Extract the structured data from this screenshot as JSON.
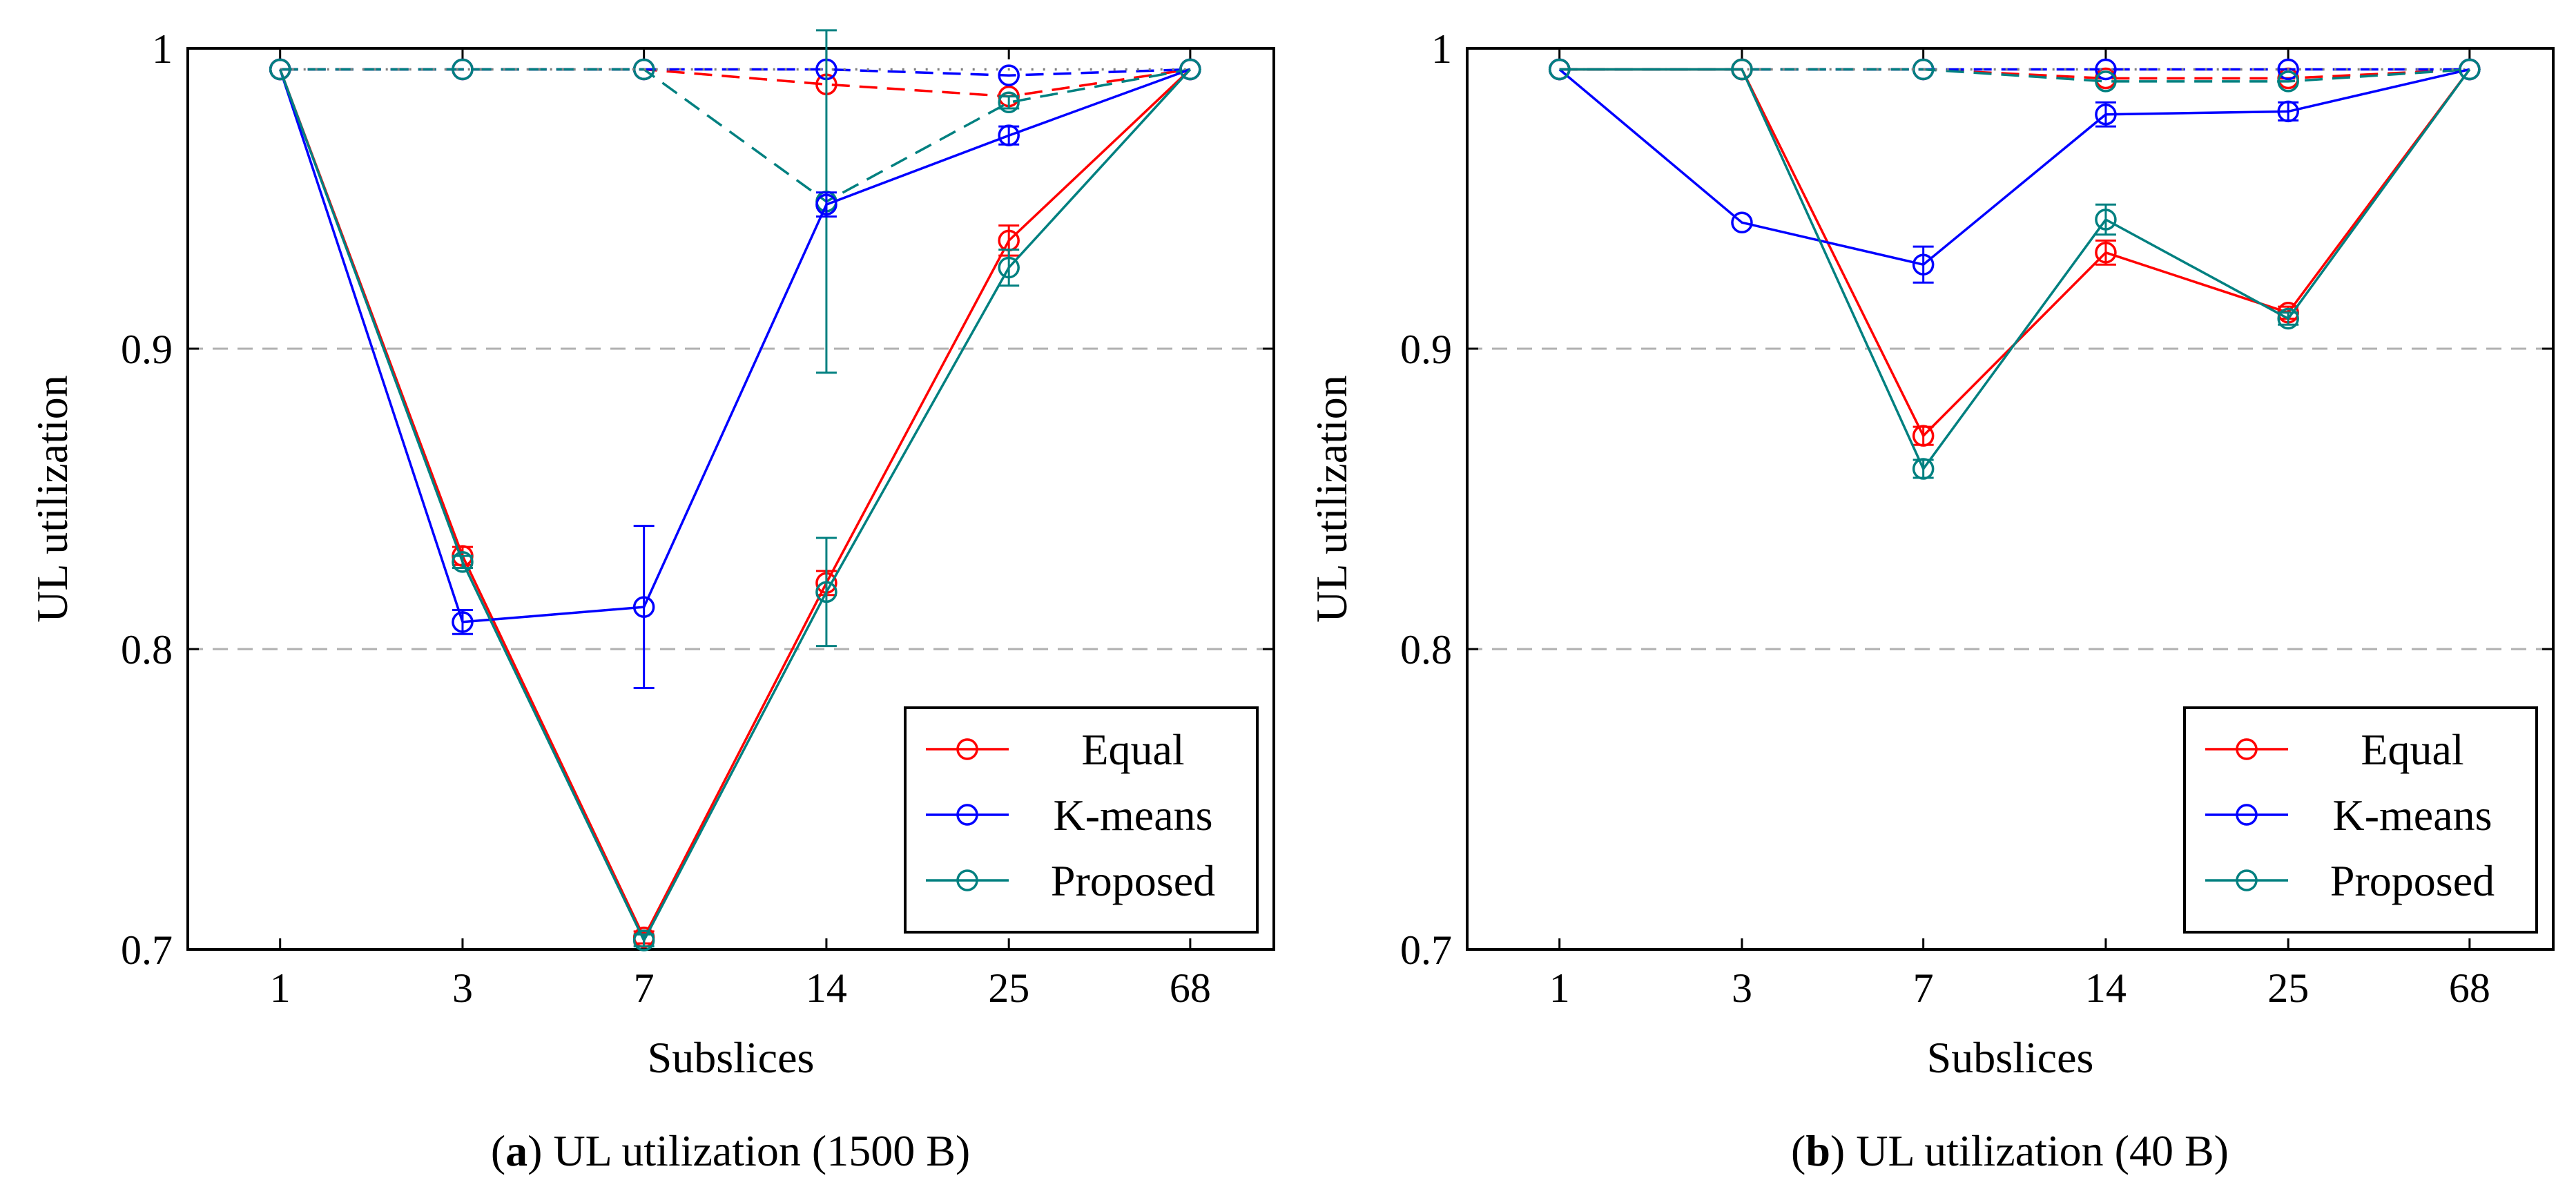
{
  "colors": {
    "Equal": "#ff0000",
    "K-means": "#0000ff",
    "Proposed": "#008080",
    "grid": "#b0b0b0",
    "reference": "#808080"
  },
  "chart_data": [
    {
      "type": "line",
      "caption_letter": "a",
      "caption_rest": ") UL utilization (1500 B)",
      "caption_open": "(",
      "xlabel": "Subslices",
      "ylabel": "UL utilization",
      "categories": [
        "1",
        "3",
        "7",
        "14",
        "25",
        "68"
      ],
      "y_ticks": [
        "0.7",
        "0.8",
        "0.9",
        "1"
      ],
      "ylim": [
        0.7,
        1.0
      ],
      "grid": "horizontal dashed at 0.8 and 0.9",
      "legend_position": "bottom-right",
      "legend": [
        "Equal",
        "K-means",
        "Proposed"
      ],
      "series": [
        {
          "name": "Equal",
          "values": [
            0.993,
            0.831,
            0.704,
            0.822,
            0.936,
            0.993
          ],
          "errors": [
            0,
            0.003,
            0.002,
            0.004,
            0.005,
            0
          ]
        },
        {
          "name": "K-means",
          "values": [
            0.993,
            0.809,
            0.814,
            0.948,
            0.971,
            0.993
          ],
          "errors": [
            0,
            0.004,
            0.027,
            0.004,
            0.003,
            0
          ]
        },
        {
          "name": "Proposed",
          "values": [
            0.993,
            0.829,
            0.703,
            0.819,
            0.927,
            0.993
          ],
          "errors": [
            0,
            0.002,
            0.002,
            0.018,
            0.006,
            0
          ]
        }
      ],
      "upper_series": [
        {
          "color_of": "Equal",
          "style": "dashed",
          "values": [
            0.993,
            0.993,
            0.993,
            0.988,
            0.984,
            0.993
          ]
        },
        {
          "color_of": "K-means",
          "style": "dashed",
          "values": [
            0.993,
            0.993,
            0.993,
            0.993,
            0.991,
            0.993
          ]
        },
        {
          "color_of": "Proposed",
          "style": "dashed",
          "values": [
            0.993,
            0.993,
            0.993,
            0.949,
            0.982,
            0.993
          ],
          "errors": [
            0,
            0,
            0,
            0.057,
            0.002,
            0
          ]
        },
        {
          "color_of": "reference",
          "style": "dotted",
          "values": [
            0.993,
            0.993,
            0.993,
            0.993,
            0.993,
            0.993
          ]
        }
      ]
    },
    {
      "type": "line",
      "caption_letter": "b",
      "caption_rest": ") UL utilization (40 B)",
      "caption_open": "(",
      "xlabel": "Subslices",
      "ylabel": "UL utilization",
      "categories": [
        "1",
        "3",
        "7",
        "14",
        "25",
        "68"
      ],
      "y_ticks": [
        "0.7",
        "0.8",
        "0.9",
        "1"
      ],
      "ylim": [
        0.7,
        1.0
      ],
      "grid": "horizontal dashed at 0.8 and 0.9",
      "legend_position": "bottom-right",
      "legend": [
        "Equal",
        "K-means",
        "Proposed"
      ],
      "series": [
        {
          "name": "Equal",
          "values": [
            0.993,
            0.993,
            0.871,
            0.932,
            0.912,
            0.993
          ],
          "errors": [
            0,
            0,
            0.003,
            0.004,
            0.002,
            0
          ]
        },
        {
          "name": "K-means",
          "values": [
            0.993,
            0.942,
            0.928,
            0.978,
            0.979,
            0.993
          ],
          "errors": [
            0,
            0,
            0.006,
            0.004,
            0.003,
            0
          ]
        },
        {
          "name": "Proposed",
          "values": [
            0.993,
            0.993,
            0.86,
            0.943,
            0.91,
            0.993
          ],
          "errors": [
            0,
            0,
            0.003,
            0.005,
            0.002,
            0
          ]
        }
      ],
      "upper_series": [
        {
          "color_of": "Equal",
          "style": "dashed",
          "values": [
            0.993,
            0.993,
            0.993,
            0.99,
            0.99,
            0.993
          ]
        },
        {
          "color_of": "K-means",
          "style": "dashed",
          "values": [
            0.993,
            0.993,
            0.993,
            0.993,
            0.993,
            0.993
          ]
        },
        {
          "color_of": "Proposed",
          "style": "dashed",
          "values": [
            0.993,
            0.993,
            0.993,
            0.989,
            0.989,
            0.993
          ]
        },
        {
          "color_of": "reference",
          "style": "dotted",
          "values": [
            0.993,
            0.993,
            0.993,
            0.993,
            0.993,
            0.993
          ]
        }
      ]
    }
  ]
}
